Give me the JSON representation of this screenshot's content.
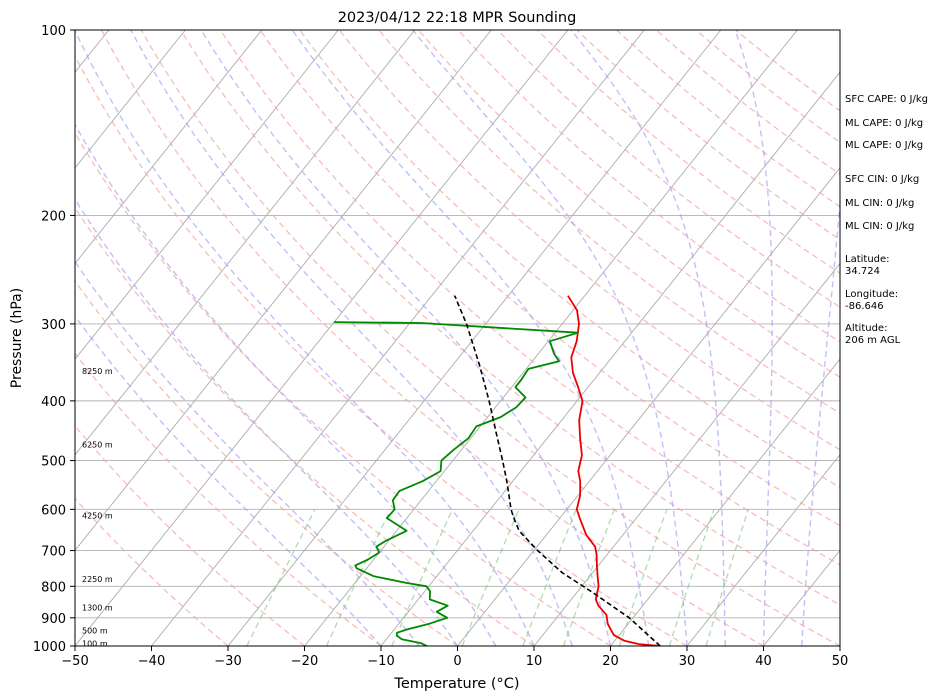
{
  "chart_data": {
    "type": "line",
    "title": "2023/04/12 22:18 MPR Sounding",
    "xlabel": "Temperature (°C)",
    "ylabel": "Pressure (hPa)",
    "xlim": [
      -50,
      50
    ],
    "ylim": [
      1000,
      100
    ],
    "y_scale": "log",
    "grid": true,
    "x_ticks": [
      "−50",
      "−40",
      "−30",
      "−20",
      "−10",
      "0",
      "10",
      "20",
      "30",
      "40",
      "50"
    ],
    "y_ticks": [
      "1000",
      "900",
      "800",
      "700",
      "600",
      "500",
      "400",
      "300",
      "200",
      "100"
    ],
    "height_labels": [
      {
        "text": "100 m",
        "p": 990
      },
      {
        "text": "500 m",
        "p": 944
      },
      {
        "text": "1300 m",
        "p": 866
      },
      {
        "text": "2250 m",
        "p": 779
      },
      {
        "text": "4250 m",
        "p": 614
      },
      {
        "text": "6250 m",
        "p": 471
      },
      {
        "text": "8250 m",
        "p": 358
      }
    ],
    "series": [
      {
        "key": "temperature",
        "color": "#ee0000",
        "points": [
          [
            1000,
            26.5
          ],
          [
            993,
            23.5
          ],
          [
            980,
            21.2
          ],
          [
            960,
            19.3
          ],
          [
            940,
            18.3
          ],
          [
            920,
            17.3
          ],
          [
            890,
            16.2
          ],
          [
            860,
            14.2
          ],
          [
            840,
            13.2
          ],
          [
            820,
            12.7
          ],
          [
            800,
            12.2
          ],
          [
            770,
            11.0
          ],
          [
            740,
            9.8
          ],
          [
            710,
            8.6
          ],
          [
            690,
            7.6
          ],
          [
            660,
            5.2
          ],
          [
            620,
            2.6
          ],
          [
            600,
            1.3
          ],
          [
            570,
            0.3
          ],
          [
            540,
            -1.2
          ],
          [
            520,
            -2.5
          ],
          [
            490,
            -3.7
          ],
          [
            460,
            -5.7
          ],
          [
            430,
            -7.7
          ],
          [
            400,
            -9.3
          ],
          [
            380,
            -11.3
          ],
          [
            360,
            -13.5
          ],
          [
            340,
            -15.3
          ],
          [
            320,
            -16.3
          ],
          [
            300,
            -17.8
          ],
          [
            285,
            -19.5
          ],
          [
            270,
            -22.2
          ]
        ]
      },
      {
        "key": "dewpoint",
        "color": "#008800",
        "points": [
          [
            1000,
            -4.0
          ],
          [
            990,
            -5.0
          ],
          [
            975,
            -8.0
          ],
          [
            962,
            -9.0
          ],
          [
            952,
            -9.3
          ],
          [
            940,
            -8.3
          ],
          [
            920,
            -6.0
          ],
          [
            900,
            -4.3
          ],
          [
            880,
            -6.3
          ],
          [
            860,
            -5.5
          ],
          [
            840,
            -8.5
          ],
          [
            815,
            -9.3
          ],
          [
            800,
            -10.3
          ],
          [
            790,
            -13.3
          ],
          [
            770,
            -18.3
          ],
          [
            748,
            -21.3
          ],
          [
            740,
            -21.8
          ],
          [
            725,
            -20.8
          ],
          [
            705,
            -20.0
          ],
          [
            690,
            -21.0
          ],
          [
            675,
            -20.4
          ],
          [
            650,
            -18.7
          ],
          [
            620,
            -22.6
          ],
          [
            600,
            -22.5
          ],
          [
            580,
            -23.7
          ],
          [
            560,
            -23.8
          ],
          [
            540,
            -21.8
          ],
          [
            520,
            -20.5
          ],
          [
            500,
            -21.5
          ],
          [
            480,
            -21.0
          ],
          [
            460,
            -20.3
          ],
          [
            440,
            -20.5
          ],
          [
            425,
            -18.3
          ],
          [
            410,
            -17.3
          ],
          [
            395,
            -17.1
          ],
          [
            380,
            -19.5
          ],
          [
            370,
            -19.5
          ],
          [
            355,
            -19.7
          ],
          [
            345,
            -16.5
          ],
          [
            335,
            -18.0
          ],
          [
            320,
            -19.8
          ],
          [
            310,
            -17.0
          ],
          [
            299,
            -38.5
          ],
          [
            298,
            -50.0
          ]
        ]
      },
      {
        "key": "parcel",
        "color": "#000000",
        "dashed": true,
        "points": [
          [
            1000,
            26.5
          ],
          [
            900,
            19.5
          ],
          [
            820,
            12.2
          ],
          [
            760,
            6.0
          ],
          [
            700,
            0.5
          ],
          [
            650,
            -4.0
          ],
          [
            620,
            -6.0
          ],
          [
            600,
            -7.3
          ],
          [
            570,
            -9.0
          ],
          [
            540,
            -10.8
          ],
          [
            500,
            -13.5
          ],
          [
            450,
            -17.3
          ],
          [
            400,
            -21.5
          ],
          [
            350,
            -26.5
          ],
          [
            300,
            -32.5
          ],
          [
            270,
            -37.0
          ]
        ]
      }
    ]
  },
  "indices": [
    "SFC CAPE: 0 J/kg",
    "ML CAPE: 0 J/kg",
    "ML CAPE: 0 J/kg",
    "SFC CIN: 0 J/kg",
    "ML CIN: 0 J/kg",
    "ML CIN: 0 J/kg"
  ],
  "location": {
    "latitude_label": "Latitude:",
    "latitude": "34.724",
    "longitude_label": "Longitude:",
    "longitude": "-86.646",
    "altitude_label": "Altitude:",
    "altitude": "206 m AGL"
  }
}
